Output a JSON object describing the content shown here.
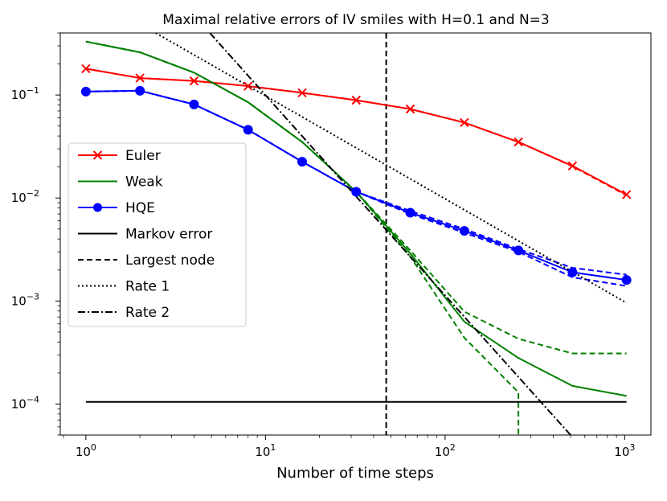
{
  "chart_data": {
    "type": "line",
    "title": "Maximal relative errors of IV smiles with H=0.1 and N=3",
    "xlabel": "Number of time steps",
    "ylabel": "",
    "xscale": "log",
    "yscale": "log",
    "xlim": [
      0.72,
      1400
    ],
    "ylim": [
      5e-05,
      0.4
    ],
    "x_ticks": [
      {
        "value": 1,
        "base": "10",
        "exp": "0"
      },
      {
        "value": 10,
        "base": "10",
        "exp": "1"
      },
      {
        "value": 100,
        "base": "10",
        "exp": "2"
      },
      {
        "value": 1000,
        "base": "10",
        "exp": "3"
      }
    ],
    "y_ticks": [
      {
        "value": 0.0001,
        "base": "10",
        "exp": "−4"
      },
      {
        "value": 0.001,
        "base": "10",
        "exp": "−3"
      },
      {
        "value": 0.01,
        "base": "10",
        "exp": "−2"
      },
      {
        "value": 0.1,
        "base": "10",
        "exp": "−1"
      }
    ],
    "legend_position": "center-left",
    "legend": [
      {
        "label": "Euler",
        "color": "#ff0000",
        "dash": "",
        "marker": "x"
      },
      {
        "label": "Weak",
        "color": "#008000",
        "dash": "",
        "marker": ""
      },
      {
        "label": "HQE",
        "color": "#0000ff",
        "dash": "",
        "marker": "o"
      },
      {
        "label": "Markov error",
        "color": "#000000",
        "dash": "",
        "marker": ""
      },
      {
        "label": "Largest node",
        "color": "#000000",
        "dash": "7,4",
        "marker": ""
      },
      {
        "label": "Rate 1",
        "color": "#000000",
        "dash": "2,3",
        "marker": ""
      },
      {
        "label": "Rate 2",
        "color": "#000000",
        "dash": "9,3,2,3",
        "marker": ""
      }
    ],
    "series": [
      {
        "name": "Euler",
        "color": "#ff0000",
        "marker": "x",
        "dash": "",
        "x": [
          1,
          2,
          4,
          8,
          16,
          32,
          64,
          128,
          256,
          512,
          1024
        ],
        "y": [
          0.18,
          0.146,
          0.137,
          0.122,
          0.105,
          0.089,
          0.073,
          0.054,
          0.035,
          0.0205,
          0.0108
        ]
      },
      {
        "name": "Euler (largest node)",
        "color": "#ff0000",
        "marker": "",
        "dash": "7,4",
        "x": [
          1,
          2,
          4,
          8,
          16,
          32,
          64,
          128,
          256,
          512,
          1024
        ],
        "y": [
          0.18,
          0.146,
          0.137,
          0.122,
          0.105,
          0.089,
          0.073,
          0.054,
          0.035,
          0.0203,
          0.0106
        ]
      },
      {
        "name": "Weak",
        "color": "#008000",
        "marker": "",
        "dash": "",
        "x": [
          1,
          2,
          4,
          8,
          16,
          32,
          64,
          128,
          256,
          512,
          1024
        ],
        "y": [
          0.33,
          0.26,
          0.165,
          0.085,
          0.035,
          0.0115,
          0.0029,
          0.00063,
          0.00028,
          0.00015,
          0.00012
        ]
      },
      {
        "name": "Weak (largest node)",
        "color": "#008000",
        "marker": "",
        "dash": "7,4",
        "x": [
          1,
          2,
          4,
          8,
          16,
          32,
          64,
          128,
          256,
          512,
          1024
        ],
        "y": [
          0.33,
          0.26,
          0.165,
          0.085,
          0.035,
          0.0115,
          0.0031,
          0.00079,
          0.00043,
          0.00031,
          0.00031
        ]
      },
      {
        "name": "Weak (largest node, truncated)",
        "color": "#008000",
        "marker": "",
        "dash": "7,4",
        "x": [
          1,
          2,
          4,
          8,
          16,
          32,
          64,
          128,
          256,
          256
        ],
        "y": [
          0.33,
          0.26,
          0.165,
          0.085,
          0.035,
          0.0115,
          0.0027,
          0.00044,
          0.00013,
          5e-05
        ]
      },
      {
        "name": "HQE",
        "color": "#0000ff",
        "marker": "o",
        "dash": "",
        "x": [
          1,
          2,
          4,
          8,
          16,
          32,
          64,
          128,
          256,
          512,
          1024
        ],
        "y": [
          0.108,
          0.11,
          0.081,
          0.046,
          0.0225,
          0.0115,
          0.0072,
          0.0048,
          0.0031,
          0.0019,
          0.0016
        ]
      },
      {
        "name": "HQE (largest node upper)",
        "color": "#0000ff",
        "marker": "",
        "dash": "7,4",
        "x": [
          1,
          2,
          4,
          8,
          16,
          32,
          64,
          128,
          256,
          512,
          1024
        ],
        "y": [
          0.108,
          0.11,
          0.081,
          0.046,
          0.0225,
          0.0115,
          0.0075,
          0.005,
          0.0032,
          0.0021,
          0.0018
        ]
      },
      {
        "name": "HQE (largest node lower)",
        "color": "#0000ff",
        "marker": "",
        "dash": "7,4",
        "x": [
          1,
          2,
          4,
          8,
          16,
          32,
          64,
          128,
          256,
          512,
          1024
        ],
        "y": [
          0.108,
          0.11,
          0.081,
          0.046,
          0.0225,
          0.0115,
          0.007,
          0.0046,
          0.003,
          0.0017,
          0.0014
        ]
      },
      {
        "name": "Markov error",
        "color": "#000000",
        "marker": "",
        "dash": "",
        "x": [
          1,
          1024
        ],
        "y": [
          0.000105,
          0.000105
        ]
      },
      {
        "name": "Rate 1",
        "color": "#000000",
        "marker": "",
        "dash": "2,3",
        "x": [
          2.45,
          1024
        ],
        "y": [
          0.4,
          0.00096
        ]
      },
      {
        "name": "Rate 2",
        "color": "#000000",
        "marker": "",
        "dash": "9,3,2,3",
        "x": [
          4.9,
          31,
          500
        ],
        "y": [
          0.4,
          0.011,
          5e-05
        ]
      }
    ],
    "vertical_lines": [
      {
        "name": "Largest node",
        "x": 47,
        "color": "#000000",
        "dash": "7,4"
      }
    ]
  }
}
